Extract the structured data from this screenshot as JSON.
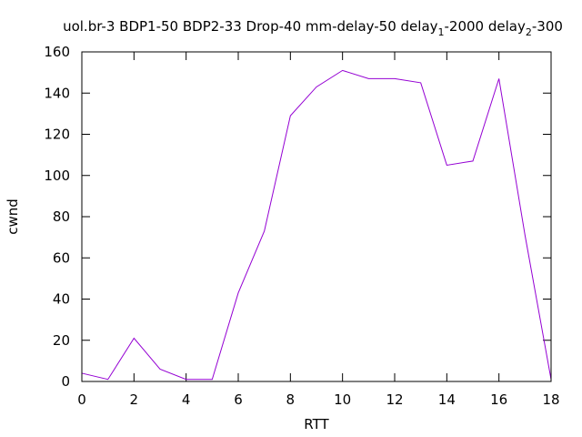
{
  "chart_data": {
    "type": "line",
    "title": {
      "seg1": "uol.br-3 BDP1-50 BDP2-33 Drop-40 mm-delay-50 delay",
      "sub1": "1",
      "seg2": "-2000 delay",
      "sub2": "2",
      "seg3": "-300"
    },
    "xlabel": "RTT",
    "ylabel": "cwnd",
    "xlim": [
      0,
      18
    ],
    "ylim": [
      0,
      160
    ],
    "xticks": [
      0,
      2,
      4,
      6,
      8,
      10,
      12,
      14,
      16,
      18
    ],
    "yticks": [
      0,
      20,
      40,
      60,
      80,
      100,
      120,
      140,
      160
    ],
    "grid": false,
    "legend": "none",
    "series": [
      {
        "color": "#9400d3",
        "x": [
          0,
          1,
          2,
          3,
          4,
          5,
          6,
          7,
          8,
          9,
          10,
          11,
          12,
          13,
          14,
          15,
          16,
          17,
          18
        ],
        "y": [
          4,
          1,
          21,
          6,
          1,
          1,
          43,
          73,
          129,
          143,
          151,
          147,
          147,
          145,
          105,
          107,
          147,
          71,
          1
        ]
      }
    ]
  }
}
